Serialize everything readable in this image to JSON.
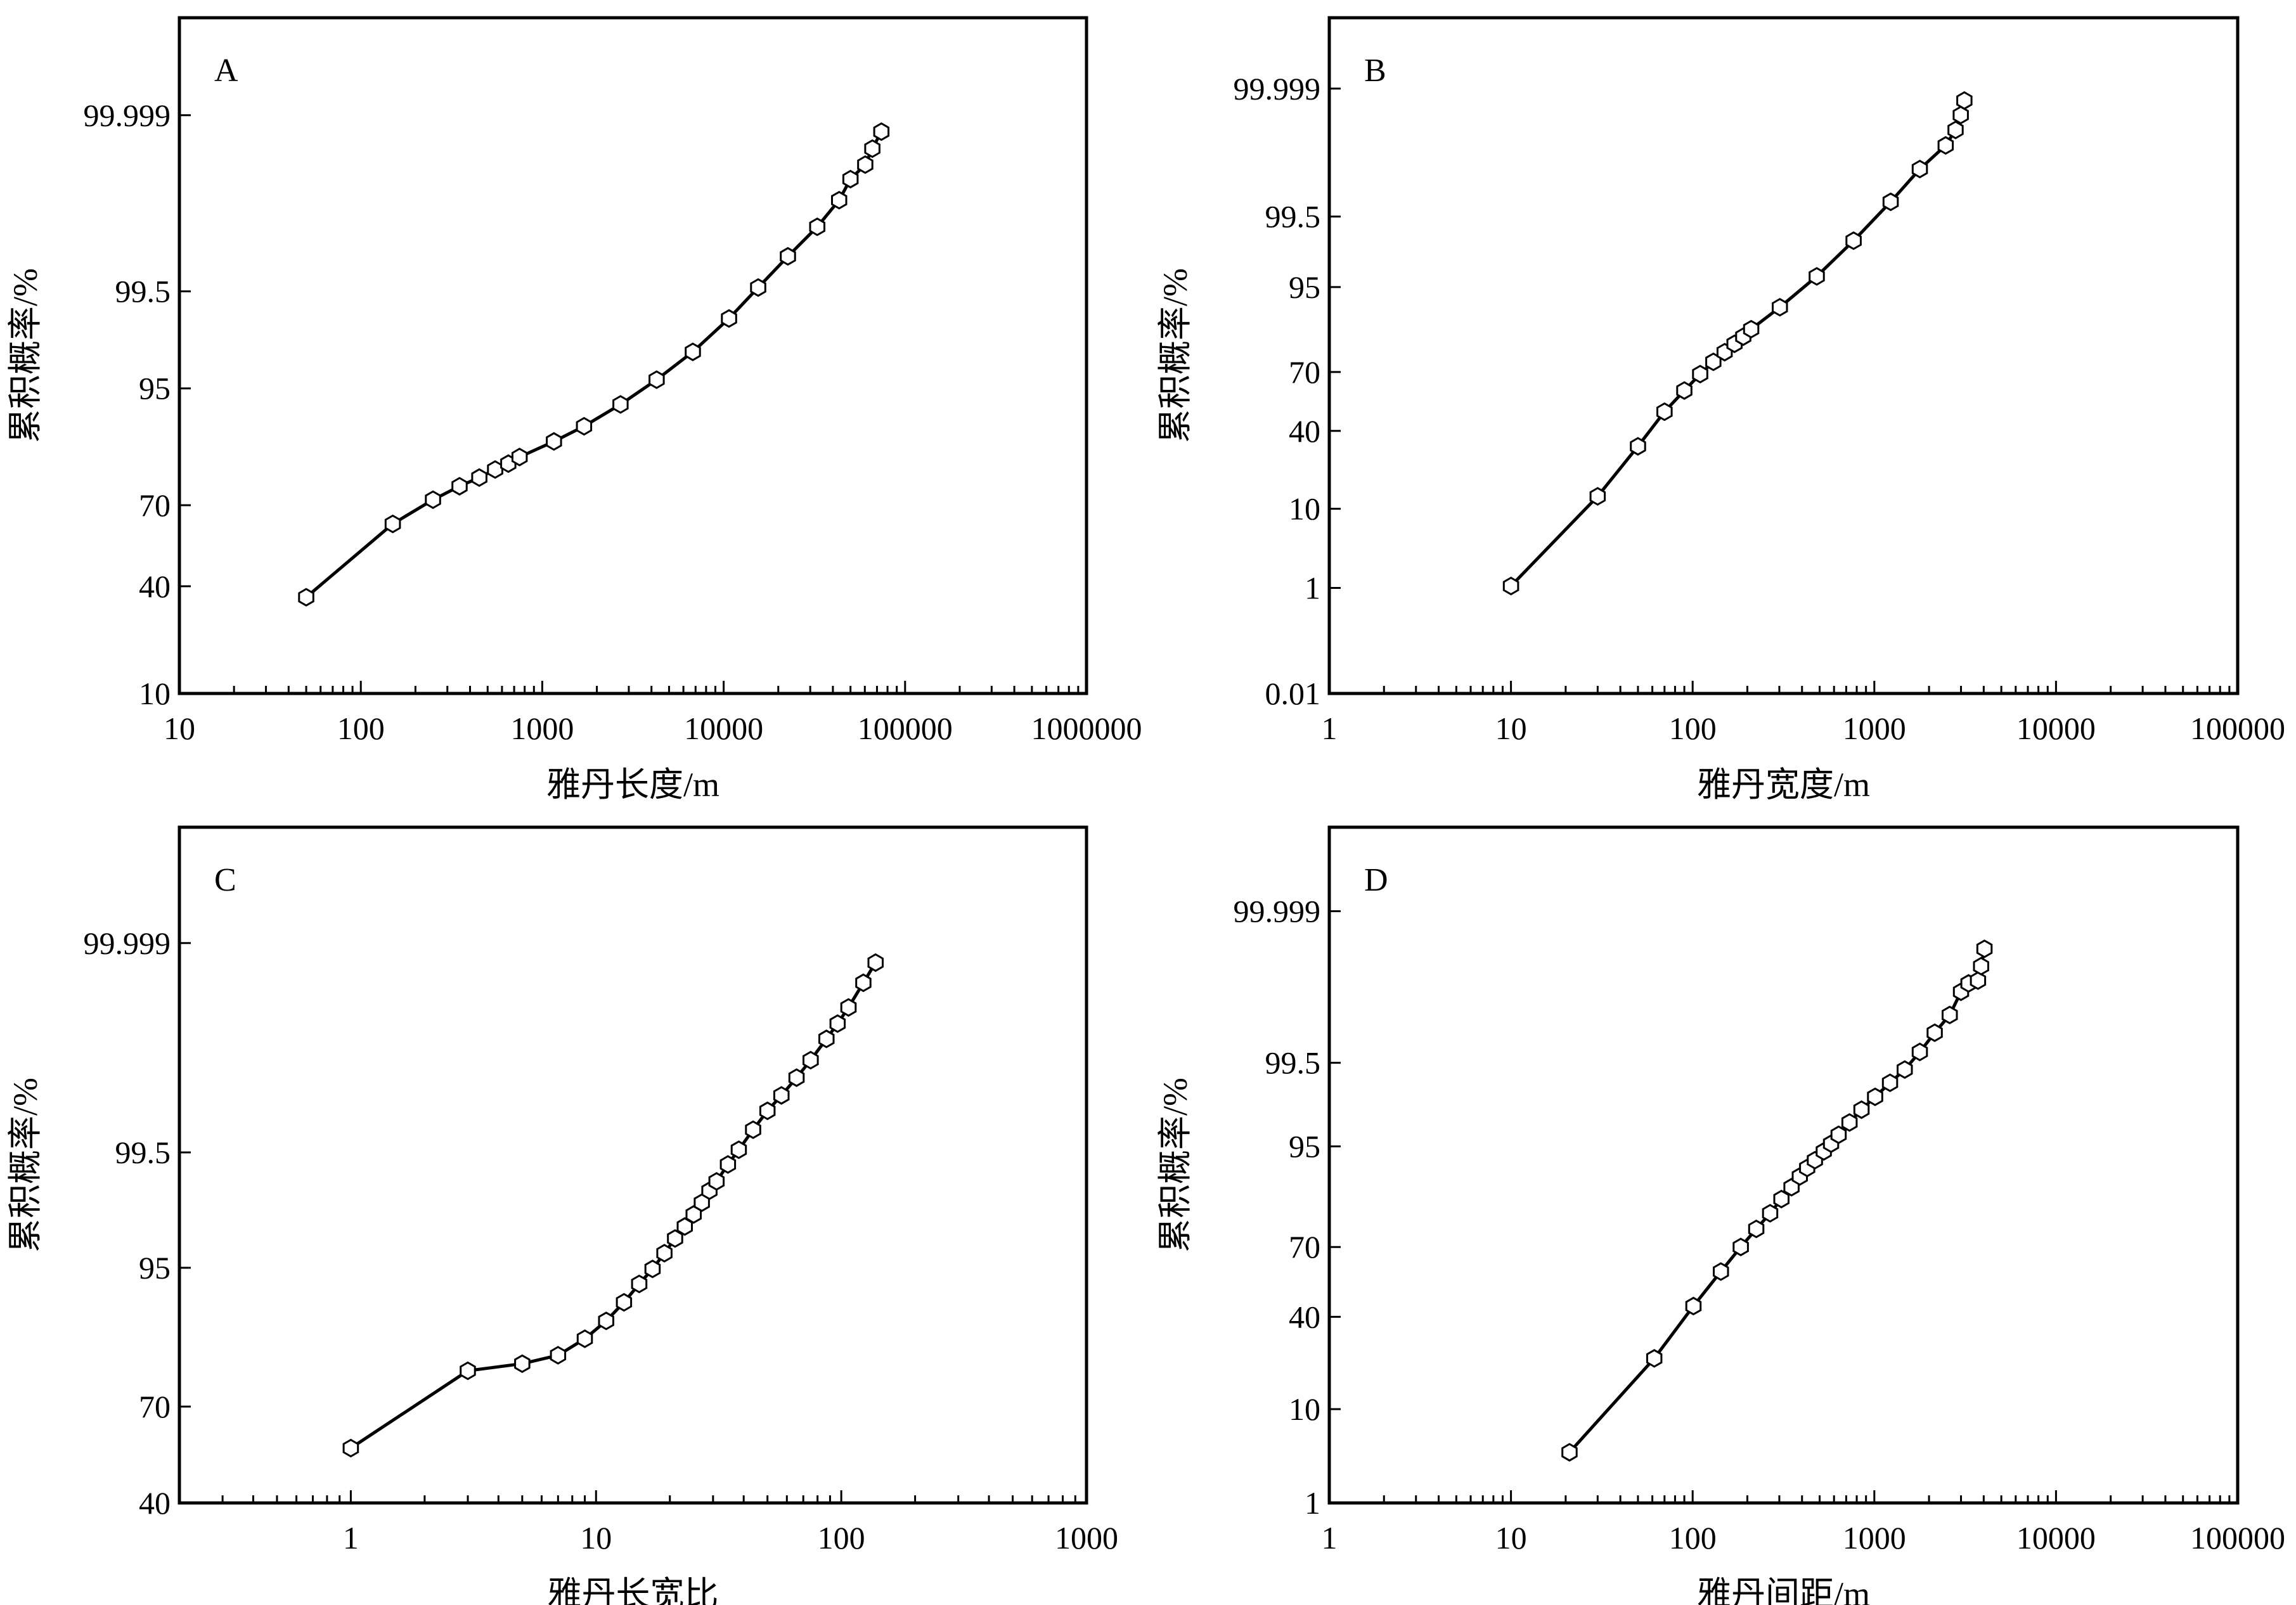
{
  "chart_data": [
    {
      "type": "scatter",
      "panel_label": "A",
      "xscale": "log",
      "yscale": "probability",
      "xlabel": "雅丹长度/m",
      "ylabel": "累积概率/%",
      "xlim": [
        10,
        1000000
      ],
      "ylim": [
        10,
        99.99999
      ],
      "xticks": [
        10,
        100,
        1000,
        10000,
        100000,
        1000000
      ],
      "xtick_labels": [
        "10",
        "100",
        "1000",
        "10000",
        "100000",
        "1000000"
      ],
      "yticks": [
        10,
        40,
        70,
        95,
        99.5,
        99.999
      ],
      "ytick_labels": [
        "10",
        "40",
        "70",
        "95",
        "99.5",
        "99.999"
      ],
      "x": [
        50,
        150,
        250,
        350,
        450,
        550,
        650,
        750,
        1160,
        1700,
        2700,
        4270,
        6760,
        10700,
        15500,
        22600,
        32800,
        43300,
        50000,
        60300,
        66000,
        74000
      ],
      "y": [
        36,
        63.5,
        71.8,
        76,
        78.5,
        80.7,
        82.2,
        83.8,
        87.2,
        90,
        93.2,
        95.8,
        97.7,
        98.97,
        99.55,
        99.82,
        99.93,
        99.972,
        99.987,
        99.9925,
        99.996,
        99.998
      ]
    },
    {
      "type": "scatter",
      "panel_label": "B",
      "xscale": "log",
      "yscale": "probability",
      "xlabel": "雅丹宽度/m",
      "ylabel": "累积概率/%",
      "xlim": [
        1,
        100000
      ],
      "ylim": [
        0.01,
        99.99999
      ],
      "xticks": [
        1,
        10,
        100,
        1000,
        10000,
        100000
      ],
      "xtick_labels": [
        "1",
        "10",
        "100",
        "1000",
        "10000",
        "100000"
      ],
      "yticks": [
        0.01,
        1,
        10,
        40,
        70,
        95,
        99.5,
        99.999
      ],
      "ytick_labels": [
        "0.01",
        "1",
        "10",
        "40",
        "70",
        "95",
        "99.5",
        "99.999"
      ],
      "x": [
        10,
        30,
        50,
        70,
        90,
        110,
        130,
        150,
        170,
        190,
        210,
        302,
        482,
        769,
        1230,
        1780,
        2470,
        2800,
        2990,
        3130
      ],
      "y": [
        1.07,
        13.2,
        32.4,
        50,
        61,
        69,
        74.5,
        78.4,
        81.5,
        83.9,
        86.2,
        91.6,
        96.3,
        98.8,
        99.72,
        99.932,
        99.978,
        99.99,
        99.9955,
        99.998
      ]
    },
    {
      "type": "scatter",
      "panel_label": "C",
      "xscale": "log",
      "yscale": "probability",
      "xlabel": "雅丹长宽比",
      "ylabel": "累积概率/%",
      "xlim": [
        0.2,
        1000
      ],
      "ylim": [
        40,
        99.99999
      ],
      "xticks": [
        1,
        10,
        100,
        1000
      ],
      "xtick_labels": [
        "1",
        "10",
        "100",
        "1000"
      ],
      "yticks": [
        40,
        70,
        95,
        99.5,
        99.999
      ],
      "ytick_labels": [
        "40",
        "70",
        "95",
        "99.5",
        "99.999"
      ],
      "x": [
        1,
        3,
        5,
        7,
        9,
        11,
        13,
        15,
        17,
        19,
        21,
        23,
        25,
        27,
        29,
        31,
        34.5,
        38.2,
        43.7,
        50,
        57,
        65.7,
        75,
        87,
        96.6,
        107,
        123,
        138
      ],
      "y": [
        57.5,
        79.2,
        80.8,
        82.6,
        85.8,
        88.8,
        91.4,
        93.5,
        94.9,
        96.1,
        97,
        97.6,
        98.1,
        98.5,
        98.83,
        99.04,
        99.34,
        99.53,
        99.71,
        99.82,
        99.88,
        99.926,
        99.955,
        99.976,
        99.985,
        99.991,
        99.996,
        99.998
      ]
    },
    {
      "type": "scatter",
      "panel_label": "D",
      "xscale": "log",
      "yscale": "probability",
      "xlabel": "雅丹间距/m",
      "ylabel": "累积概率/%",
      "xlim": [
        1,
        100000
      ],
      "ylim": [
        1,
        99.99999
      ],
      "xticks": [
        1,
        10,
        100,
        1000,
        10000,
        100000
      ],
      "xtick_labels": [
        "1",
        "10",
        "100",
        "1000",
        "10000",
        "100000"
      ],
      "yticks": [
        1,
        10,
        40,
        70,
        95,
        99.5,
        99.999
      ],
      "ytick_labels": [
        "1",
        "10",
        "40",
        "70",
        "95",
        "99.5",
        "99.999"
      ],
      "x": [
        21,
        61.5,
        101,
        143,
        184,
        224,
        267,
        308,
        350,
        389,
        427,
        471,
        527,
        578,
        636,
        730,
        850,
        1010,
        1220,
        1470,
        1780,
        2150,
        2600,
        3000,
        3300,
        3720,
        3870,
        4040
      ],
      "y": [
        3.9,
        23.7,
        44.7,
        59.9,
        70,
        76.6,
        81.6,
        85.5,
        88.3,
        90.5,
        92,
        93.2,
        94.4,
        95.3,
        96.2,
        97.2,
        98,
        98.6,
        99.07,
        99.38,
        99.65,
        99.82,
        99.906,
        99.962,
        99.973,
        99.976,
        99.987,
        99.994
      ]
    }
  ]
}
